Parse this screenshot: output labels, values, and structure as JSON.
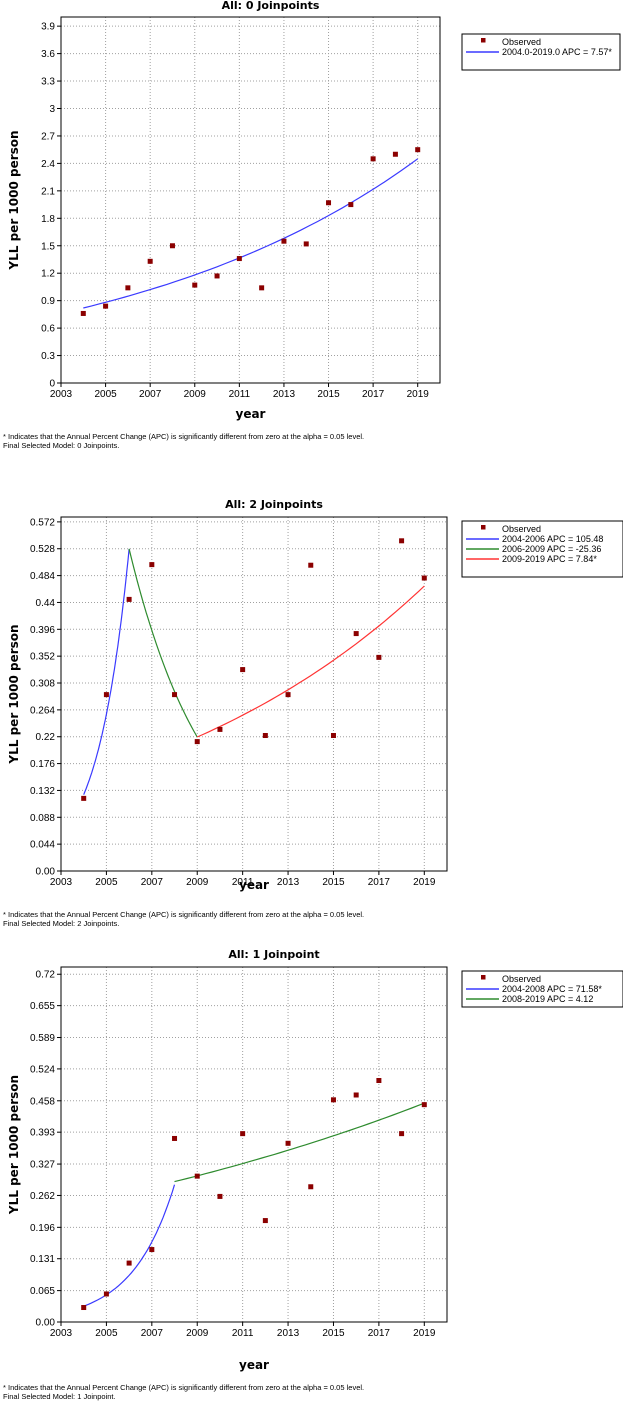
{
  "footnote": {
    "significance": "* Indicates that the Annual Percent Change (APC) is significantly different from zero at the alpha = 0.05 level."
  },
  "colors": {
    "observed": "#8b0000",
    "blue": "#3a3aff",
    "green": "#2e8b2e",
    "red": "#ff3333"
  },
  "panels": [
    {
      "final_model": "Final Selected Model: 0 Joinpoints.",
      "chart_data": {
        "type": "scatter",
        "title": "All: 0 Joinpoints",
        "xlabel": "year",
        "ylabel": "YLL per 1000 person",
        "xlim": [
          2003,
          2020
        ],
        "ylim": [
          0,
          4.0
        ],
        "x_ticks": [
          "2003",
          "2005",
          "2007",
          "2009",
          "2011",
          "2013",
          "2015",
          "2017",
          "2019"
        ],
        "y_ticks": [
          "0",
          "0.3",
          "0.6",
          "0.9",
          "1.2",
          "1.5",
          "1.8",
          "2.1",
          "2.4",
          "2.7",
          "3",
          "3.3",
          "3.6",
          "3.9"
        ],
        "grid": true,
        "legend_position": "right",
        "observed": {
          "name": "Observed",
          "x": [
            2004,
            2005,
            2006,
            2007,
            2008,
            2009,
            2010,
            2011,
            2012,
            2013,
            2014,
            2015,
            2016,
            2017,
            2018,
            2019
          ],
          "y": [
            0.76,
            0.84,
            1.04,
            1.33,
            1.5,
            1.07,
            1.17,
            1.36,
            1.04,
            1.55,
            1.52,
            1.97,
            1.95,
            2.45,
            2.5,
            2.55
          ]
        },
        "segments": [
          {
            "name": "2004.0-2019.0 APC  = 7.57*",
            "color": "blue",
            "start": 2004,
            "end": 2019,
            "y_start": 0.82,
            "apc": 7.57
          }
        ]
      }
    },
    {
      "final_model": "Final Selected Model: 2 Joinpoints.",
      "chart_data": {
        "type": "scatter",
        "title": "All: 2 Joinpoints",
        "xlabel": "year",
        "ylabel": "YLL per 1000 person",
        "xlim": [
          2003,
          2020
        ],
        "ylim": [
          0,
          0.58
        ],
        "x_ticks": [
          "2003",
          "2005",
          "2007",
          "2009",
          "2011",
          "2013",
          "2015",
          "2017",
          "2019"
        ],
        "y_ticks": [
          "0.00",
          "0.044",
          "0.088",
          "0.132",
          "0.176",
          "0.22",
          "0.264",
          "0.308",
          "0.352",
          "0.396",
          "0.44",
          "0.484",
          "0.528",
          "0.572"
        ],
        "grid": true,
        "legend_position": "right",
        "observed": {
          "name": "Observed",
          "x": [
            2004,
            2005,
            2006,
            2007,
            2008,
            2009,
            2010,
            2011,
            2012,
            2013,
            2014,
            2015,
            2016,
            2017,
            2018,
            2019
          ],
          "y": [
            0.119,
            0.289,
            0.445,
            0.502,
            0.289,
            0.212,
            0.232,
            0.33,
            0.222,
            0.289,
            0.501,
            0.222,
            0.389,
            0.35,
            0.541,
            0.48
          ]
        },
        "segments": [
          {
            "name": "2004-2006 APC  = 105.48",
            "color": "blue",
            "start": 2004,
            "end": 2006,
            "y_start": 0.125,
            "apc": 105.48
          },
          {
            "name": "2006-2009 APC  = -25.36",
            "color": "green",
            "start": 2006,
            "end": 2009,
            "y_start": 0.5279,
            "apc": -25.36
          },
          {
            "name": "2009-2019 APC  =  7.84*",
            "color": "red",
            "start": 2009,
            "end": 2019,
            "y_start": 0.2195,
            "apc": 7.84
          }
        ]
      }
    },
    {
      "final_model": "Final Selected Model: 1 Joinpoint.",
      "chart_data": {
        "type": "scatter",
        "title": "All: 1 Joinpoint",
        "xlabel": "year",
        "ylabel": "YLL per 1000 person",
        "xlim": [
          2003,
          2020
        ],
        "ylim": [
          0,
          0.735
        ],
        "x_ticks": [
          "2003",
          "2005",
          "2007",
          "2009",
          "2011",
          "2013",
          "2015",
          "2017",
          "2019"
        ],
        "y_ticks": [
          "0.00",
          "0.065",
          "0.131",
          "0.196",
          "0.262",
          "0.327",
          "0.393",
          "0.458",
          "0.524",
          "0.589",
          "0.655",
          "0.72"
        ],
        "grid": true,
        "legend_position": "right",
        "observed": {
          "name": "Observed",
          "x": [
            2004,
            2005,
            2006,
            2007,
            2008,
            2009,
            2010,
            2011,
            2012,
            2013,
            2014,
            2015,
            2016,
            2017,
            2018,
            2019
          ],
          "y": [
            0.03,
            0.058,
            0.122,
            0.15,
            0.38,
            0.302,
            0.26,
            0.39,
            0.21,
            0.37,
            0.28,
            0.46,
            0.47,
            0.5,
            0.39,
            0.45
          ]
        },
        "segments": [
          {
            "name": "2004-2008 APC  = 71.58*",
            "color": "blue",
            "start": 2004,
            "end": 2008,
            "y_start": 0.0328,
            "apc": 71.58
          },
          {
            "name": "2008-2019 APC  = 4.12",
            "color": "green",
            "start": 2008,
            "end": 2019,
            "y_start": 0.2906,
            "apc": 4.12
          }
        ]
      }
    }
  ]
}
